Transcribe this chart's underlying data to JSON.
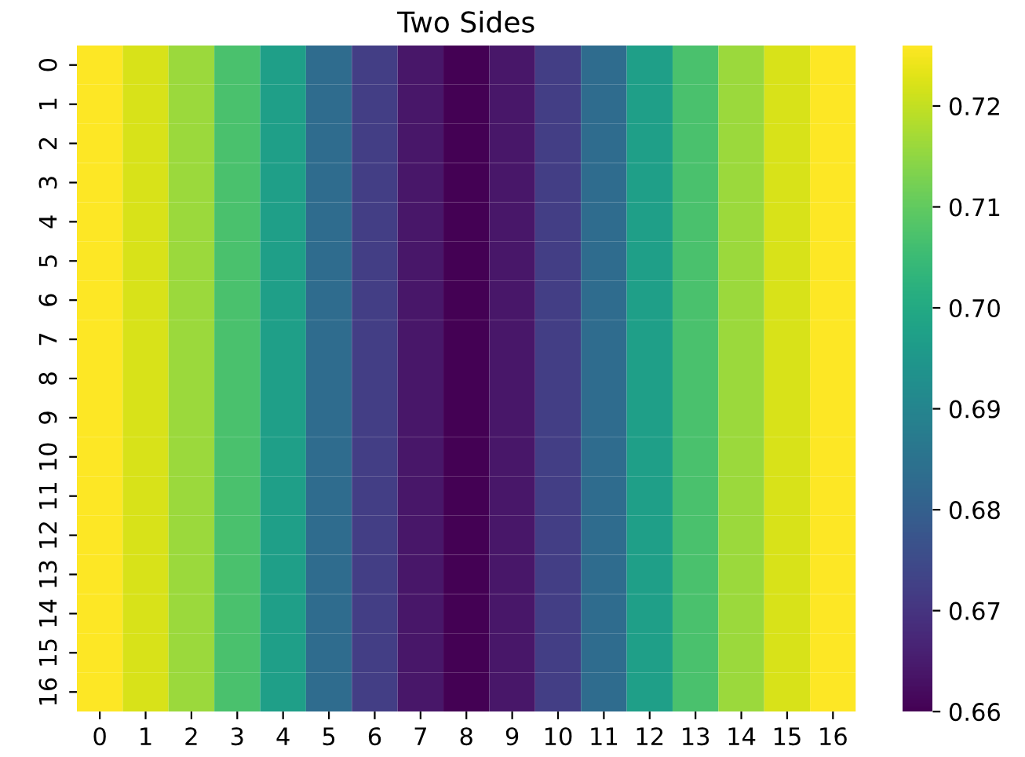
{
  "chart_data": {
    "type": "heatmap",
    "title": "Two Sides",
    "categories": [
      "0",
      "1",
      "2",
      "3",
      "4",
      "5",
      "6",
      "7",
      "8",
      "9",
      "10",
      "11",
      "12",
      "13",
      "14",
      "15",
      "16"
    ],
    "y_categories": [
      "0",
      "1",
      "2",
      "3",
      "4",
      "5",
      "6",
      "7",
      "8",
      "9",
      "10",
      "11",
      "12",
      "13",
      "14",
      "15",
      "16"
    ],
    "cells": [
      [
        0.726,
        0.722,
        0.716,
        0.707,
        0.697,
        0.683,
        0.672,
        0.664,
        0.66,
        0.664,
        0.672,
        0.683,
        0.697,
        0.707,
        0.716,
        0.722,
        0.726
      ],
      [
        0.726,
        0.722,
        0.716,
        0.707,
        0.697,
        0.683,
        0.672,
        0.664,
        0.66,
        0.664,
        0.672,
        0.683,
        0.697,
        0.707,
        0.716,
        0.722,
        0.726
      ],
      [
        0.726,
        0.722,
        0.716,
        0.707,
        0.697,
        0.683,
        0.672,
        0.664,
        0.66,
        0.664,
        0.672,
        0.683,
        0.697,
        0.707,
        0.716,
        0.722,
        0.726
      ],
      [
        0.726,
        0.722,
        0.716,
        0.707,
        0.697,
        0.683,
        0.672,
        0.664,
        0.66,
        0.664,
        0.672,
        0.683,
        0.697,
        0.707,
        0.716,
        0.722,
        0.726
      ],
      [
        0.726,
        0.722,
        0.716,
        0.707,
        0.697,
        0.683,
        0.672,
        0.664,
        0.66,
        0.664,
        0.672,
        0.683,
        0.697,
        0.707,
        0.716,
        0.722,
        0.726
      ],
      [
        0.726,
        0.722,
        0.716,
        0.707,
        0.697,
        0.683,
        0.672,
        0.664,
        0.66,
        0.664,
        0.672,
        0.683,
        0.697,
        0.707,
        0.716,
        0.722,
        0.726
      ],
      [
        0.726,
        0.722,
        0.716,
        0.707,
        0.697,
        0.683,
        0.672,
        0.664,
        0.66,
        0.664,
        0.672,
        0.683,
        0.697,
        0.707,
        0.716,
        0.722,
        0.726
      ],
      [
        0.726,
        0.722,
        0.716,
        0.707,
        0.697,
        0.683,
        0.672,
        0.664,
        0.66,
        0.664,
        0.672,
        0.683,
        0.697,
        0.707,
        0.716,
        0.722,
        0.726
      ],
      [
        0.726,
        0.722,
        0.716,
        0.707,
        0.697,
        0.683,
        0.672,
        0.664,
        0.66,
        0.664,
        0.672,
        0.683,
        0.697,
        0.707,
        0.716,
        0.722,
        0.726
      ],
      [
        0.726,
        0.722,
        0.716,
        0.707,
        0.697,
        0.683,
        0.672,
        0.664,
        0.66,
        0.664,
        0.672,
        0.683,
        0.697,
        0.707,
        0.716,
        0.722,
        0.726
      ],
      [
        0.726,
        0.722,
        0.716,
        0.707,
        0.697,
        0.683,
        0.672,
        0.664,
        0.66,
        0.664,
        0.672,
        0.683,
        0.697,
        0.707,
        0.716,
        0.722,
        0.726
      ],
      [
        0.726,
        0.722,
        0.716,
        0.707,
        0.697,
        0.683,
        0.672,
        0.664,
        0.66,
        0.664,
        0.672,
        0.683,
        0.697,
        0.707,
        0.716,
        0.722,
        0.726
      ],
      [
        0.726,
        0.722,
        0.716,
        0.707,
        0.697,
        0.683,
        0.672,
        0.664,
        0.66,
        0.664,
        0.672,
        0.683,
        0.697,
        0.707,
        0.716,
        0.722,
        0.726
      ],
      [
        0.726,
        0.722,
        0.716,
        0.707,
        0.697,
        0.683,
        0.672,
        0.664,
        0.66,
        0.664,
        0.672,
        0.683,
        0.697,
        0.707,
        0.716,
        0.722,
        0.726
      ],
      [
        0.726,
        0.722,
        0.716,
        0.707,
        0.697,
        0.683,
        0.672,
        0.664,
        0.66,
        0.664,
        0.672,
        0.683,
        0.697,
        0.707,
        0.716,
        0.722,
        0.726
      ],
      [
        0.726,
        0.722,
        0.716,
        0.707,
        0.697,
        0.683,
        0.672,
        0.664,
        0.66,
        0.664,
        0.672,
        0.683,
        0.697,
        0.707,
        0.716,
        0.722,
        0.726
      ],
      [
        0.726,
        0.722,
        0.716,
        0.707,
        0.697,
        0.683,
        0.672,
        0.664,
        0.66,
        0.664,
        0.672,
        0.683,
        0.697,
        0.707,
        0.716,
        0.722,
        0.726
      ]
    ],
    "clim": [
      0.66,
      0.726
    ],
    "cticks": [
      0.66,
      0.67,
      0.68,
      0.69,
      {
        "value": 0.7,
        "label": "0.70"
      },
      0.71,
      0.72
    ]
  }
}
